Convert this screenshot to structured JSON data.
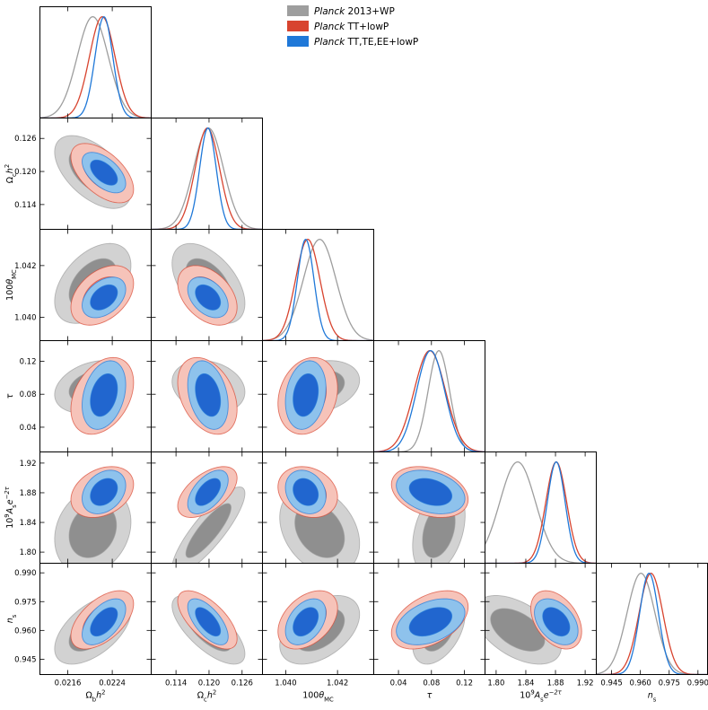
{
  "chart_data": {
    "type": "triangle-contour",
    "parameters": [
      {
        "id": "omegabh2",
        "label_parts": [
          {
            "t": "Ω"
          },
          {
            "t": "b",
            "sub": true
          },
          {
            "t": "h",
            "it": true
          },
          {
            "t": "2",
            "sup": true
          }
        ],
        "range": [
          0.0211,
          0.0231
        ],
        "ticks": [
          0.0216,
          0.0224
        ],
        "tick_labels": [
          "0.0216",
          "0.0224"
        ]
      },
      {
        "id": "omegach2",
        "label_parts": [
          {
            "t": "Ω"
          },
          {
            "t": "c",
            "sub": true
          },
          {
            "t": "h",
            "it": true
          },
          {
            "t": "2",
            "sup": true
          }
        ],
        "range": [
          0.1095,
          0.1297
        ],
        "ticks": [
          0.114,
          0.12,
          0.126
        ],
        "tick_labels": [
          "0.114",
          "0.120",
          "0.126"
        ]
      },
      {
        "id": "theta",
        "label_parts": [
          {
            "t": "100"
          },
          {
            "t": "θ",
            "it": true
          },
          {
            "t": "MC",
            "sub": true
          }
        ],
        "range": [
          1.0391,
          1.0434
        ],
        "ticks": [
          1.04,
          1.042
        ],
        "tick_labels": [
          "1.040",
          "1.042"
        ]
      },
      {
        "id": "tau",
        "label_parts": [
          {
            "t": "τ",
            "it": true
          }
        ],
        "range": [
          0.01,
          0.145
        ],
        "ticks": [
          0.04,
          0.08,
          0.12
        ],
        "tick_labels": [
          "0.04",
          "0.08",
          "0.12"
        ]
      },
      {
        "id": "as",
        "label_parts": [
          {
            "t": "10"
          },
          {
            "t": "9",
            "sup": true
          },
          {
            "t": "A",
            "it": true
          },
          {
            "t": "s",
            "sub": true
          },
          {
            "t": "e",
            "it": true
          },
          {
            "t": "−2τ",
            "sup": true,
            "it": true
          }
        ],
        "range": [
          1.785,
          1.935
        ],
        "ticks": [
          1.8,
          1.84,
          1.88,
          1.92
        ],
        "tick_labels": [
          "1.80",
          "1.84",
          "1.88",
          "1.92"
        ]
      },
      {
        "id": "ns",
        "label_parts": [
          {
            "t": "n",
            "it": true
          },
          {
            "t": "s",
            "sub": true
          }
        ],
        "range": [
          0.937,
          0.995
        ],
        "ticks": [
          0.945,
          0.96,
          0.975,
          0.99
        ],
        "tick_labels": [
          "0.945",
          "0.960",
          "0.975",
          "0.990"
        ]
      }
    ],
    "series": [
      {
        "name_it": "Planck",
        "name": " 2013+WP",
        "color": "#9e9e9e",
        "fill68": "#8f8f8f",
        "fill95": "#d2d2d2",
        "mean": [
          0.02205,
          0.1199,
          1.04131,
          0.089,
          1.829,
          0.9603
        ],
        "sigma": [
          0.00028,
          0.0027,
          0.00063,
          0.013,
          0.024,
          0.0073
        ],
        "corr": [
          [
            1,
            -0.55,
            0.45,
            0.3,
            0.2,
            0.55
          ],
          [
            -0.55,
            1,
            -0.5,
            -0.2,
            0.85,
            -0.7
          ],
          [
            0.45,
            -0.5,
            1,
            0.25,
            -0.3,
            0.45
          ],
          [
            0.3,
            -0.2,
            0.25,
            1,
            0.35,
            0.45
          ],
          [
            0.2,
            0.85,
            -0.3,
            0.35,
            1,
            -0.5
          ],
          [
            0.55,
            -0.7,
            0.45,
            0.45,
            -0.5,
            1
          ]
        ]
      },
      {
        "name_it": "Planck",
        "name": " TT+lowP",
        "color": "#d8442f",
        "fill68": "#ee8577",
        "fill95": "#f6c3b9",
        "mean": [
          0.02222,
          0.1197,
          1.04085,
          0.078,
          1.881,
          0.9655
        ],
        "sigma": [
          0.00023,
          0.0022,
          0.00047,
          0.019,
          0.014,
          0.0062
        ],
        "corr": [
          [
            1,
            -0.55,
            0.4,
            0.35,
            0.3,
            0.55
          ],
          [
            -0.55,
            1,
            -0.4,
            -0.35,
            0.55,
            -0.65
          ],
          [
            0.4,
            -0.4,
            1,
            0.2,
            -0.2,
            0.4
          ],
          [
            0.35,
            -0.35,
            0.2,
            1,
            -0.3,
            0.45
          ],
          [
            0.3,
            0.55,
            -0.2,
            -0.3,
            1,
            -0.4
          ],
          [
            0.55,
            -0.65,
            0.4,
            0.45,
            -0.4,
            1
          ]
        ]
      },
      {
        "name_it": "Planck",
        "name": " TT,TE,EE+lowP",
        "color": "#1f78d8",
        "fill68": "#2166cf",
        "fill95": "#8ec2ec",
        "mean": [
          0.02225,
          0.1198,
          1.04077,
          0.079,
          1.881,
          0.9645
        ],
        "sigma": [
          0.00016,
          0.0015,
          0.00032,
          0.017,
          0.012,
          0.0049
        ],
        "corr": [
          [
            1,
            -0.55,
            0.4,
            0.3,
            0.3,
            0.55
          ],
          [
            -0.55,
            1,
            -0.4,
            -0.3,
            0.55,
            -0.65
          ],
          [
            0.4,
            -0.4,
            1,
            0.2,
            -0.2,
            0.4
          ],
          [
            0.3,
            -0.3,
            0.2,
            1,
            -0.3,
            0.4
          ],
          [
            0.3,
            0.55,
            -0.2,
            -0.3,
            1,
            -0.4
          ],
          [
            0.55,
            -0.65,
            0.4,
            0.4,
            -0.4,
            1
          ]
        ]
      }
    ],
    "legend_position": "top-center"
  }
}
